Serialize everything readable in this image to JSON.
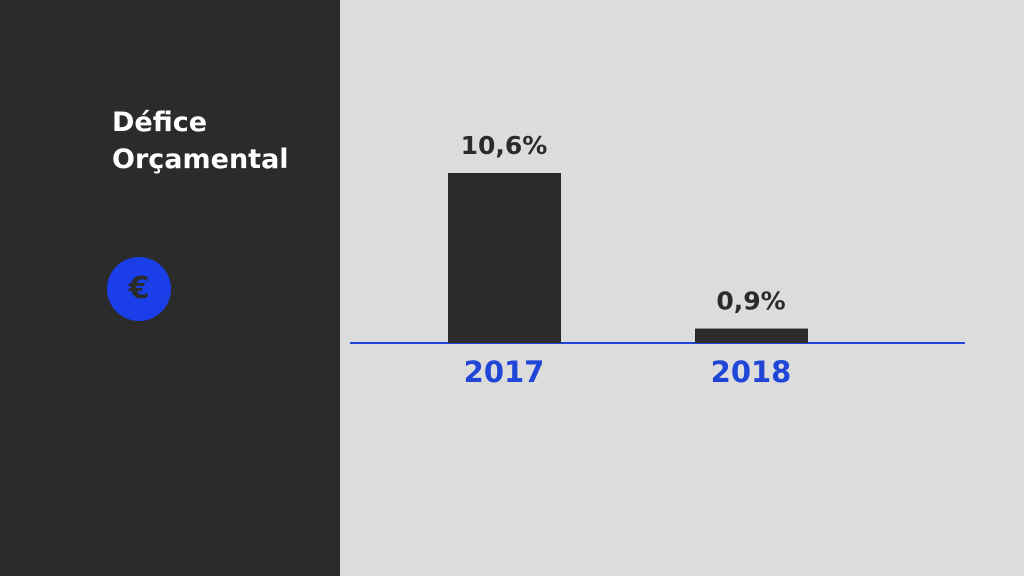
{
  "chart_data": {
    "type": "bar",
    "title": "Défice Orçamental",
    "icon": "€",
    "categories": [
      "2017",
      "2018"
    ],
    "values": [
      10.6,
      0.9
    ],
    "value_labels": [
      "10,6%",
      "0,9%"
    ],
    "color": "#2b2b2b",
    "axis_color": "#2046d8"
  }
}
